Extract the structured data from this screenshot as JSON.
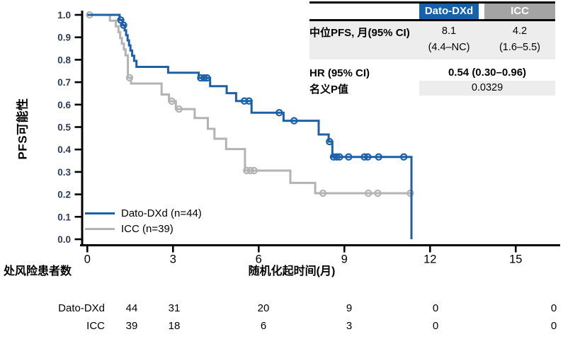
{
  "colors": {
    "dato_curve": "#1b60a8",
    "icc_curve": "#b3b3b3",
    "dato_header_bg": "#1561ac",
    "icc_header_bg": "#a4a4a4",
    "row_shade": "#ededed",
    "axis": "#000000",
    "x_tick_label": "#000000",
    "y_tick_label": "#2c3a5e"
  },
  "stats_table": {
    "header": {
      "dato": "Dato-DXd",
      "icc": "ICC"
    },
    "median_row": {
      "label": "中位PFS, 月(95% CI)",
      "dato": [
        "8.1",
        "(4.4–NC)"
      ],
      "icc": [
        "4.2",
        "(1.6–5.5)"
      ]
    },
    "hr_row": {
      "label": "HR (95% CI)",
      "value": "0.54 (0.30–0.96)"
    },
    "p_row": {
      "label": "名义P值",
      "value": "0.0329"
    }
  },
  "chart_data": {
    "type": "line",
    "subtype": "kaplan-meier-step",
    "title": "",
    "xlabel": "随机化起时间(月)",
    "ylabel": "PFS可能性",
    "xlim": [
      0,
      15
    ],
    "ylim": [
      0.0,
      1.0
    ],
    "xticks": [
      0,
      3,
      6,
      9,
      12,
      15
    ],
    "ytick_step": 0.1,
    "grid": false,
    "legend_position": "lower-left-inside",
    "series": [
      {
        "name": "Dato-DXd",
        "n": 44,
        "legend_label": "Dato-DXd (n=44)",
        "color": "#1b60a8",
        "steps": [
          [
            0,
            1.0
          ],
          [
            1.13,
            0.977
          ],
          [
            1.23,
            0.954
          ],
          [
            1.31,
            0.931
          ],
          [
            1.36,
            0.909
          ],
          [
            1.41,
            0.886
          ],
          [
            1.46,
            0.864
          ],
          [
            1.51,
            0.841
          ],
          [
            1.57,
            0.818
          ],
          [
            1.64,
            0.795
          ],
          [
            1.72,
            0.768
          ],
          [
            2.83,
            0.742
          ],
          [
            3.9,
            0.719
          ],
          [
            4.3,
            0.682
          ],
          [
            4.88,
            0.651
          ],
          [
            5.21,
            0.616
          ],
          [
            5.75,
            0.564
          ],
          [
            6.87,
            0.528
          ],
          [
            8.1,
            0.467
          ],
          [
            8.45,
            0.435
          ],
          [
            8.58,
            0.367
          ],
          [
            11.35,
            0.0
          ]
        ],
        "censors": [
          [
            1.17,
            0.977
          ],
          [
            1.27,
            0.954
          ],
          [
            3.97,
            0.719
          ],
          [
            4.09,
            0.719
          ],
          [
            4.19,
            0.719
          ],
          [
            5.5,
            0.616
          ],
          [
            5.66,
            0.616
          ],
          [
            6.72,
            0.564
          ],
          [
            7.24,
            0.528
          ],
          [
            8.48,
            0.435
          ],
          [
            8.62,
            0.367
          ],
          [
            8.73,
            0.367
          ],
          [
            8.83,
            0.367
          ],
          [
            9.15,
            0.367
          ],
          [
            9.7,
            0.367
          ],
          [
            9.82,
            0.367
          ],
          [
            10.2,
            0.367
          ],
          [
            11.08,
            0.367
          ]
        ],
        "end_time": null
      },
      {
        "name": "ICC",
        "n": 39,
        "legend_label": "ICC (n=39)",
        "color": "#b3b3b3",
        "steps": [
          [
            0,
            1.0
          ],
          [
            0.79,
            0.974
          ],
          [
            1.0,
            0.949
          ],
          [
            1.09,
            0.923
          ],
          [
            1.15,
            0.897
          ],
          [
            1.21,
            0.872
          ],
          [
            1.28,
            0.846
          ],
          [
            1.34,
            0.82
          ],
          [
            1.42,
            0.72
          ],
          [
            1.53,
            0.694
          ],
          [
            2.6,
            0.645
          ],
          [
            2.86,
            0.615
          ],
          [
            3.1,
            0.58
          ],
          [
            3.76,
            0.54
          ],
          [
            4.22,
            0.492
          ],
          [
            4.45,
            0.448
          ],
          [
            4.86,
            0.402
          ],
          [
            5.52,
            0.306
          ],
          [
            7.11,
            0.251
          ],
          [
            7.98,
            0.205
          ]
        ],
        "censors": [
          [
            0.08,
            1.0
          ],
          [
            1.48,
            0.72
          ],
          [
            2.96,
            0.615
          ],
          [
            3.21,
            0.58
          ],
          [
            5.58,
            0.306
          ],
          [
            5.71,
            0.306
          ],
          [
            5.84,
            0.306
          ],
          [
            8.25,
            0.205
          ],
          [
            9.84,
            0.205
          ],
          [
            10.17,
            0.205
          ],
          [
            11.31,
            0.205
          ]
        ],
        "end_time": 11.31
      }
    ]
  },
  "risk_table": {
    "title": "处风险患者数",
    "rows": [
      {
        "label": "Dato-DXd",
        "values": [
          "44",
          "31",
          "20",
          "9",
          "0",
          "0"
        ]
      },
      {
        "label": "ICC",
        "values": [
          "39",
          "18",
          "6",
          "3",
          "0",
          "0"
        ]
      }
    ]
  }
}
